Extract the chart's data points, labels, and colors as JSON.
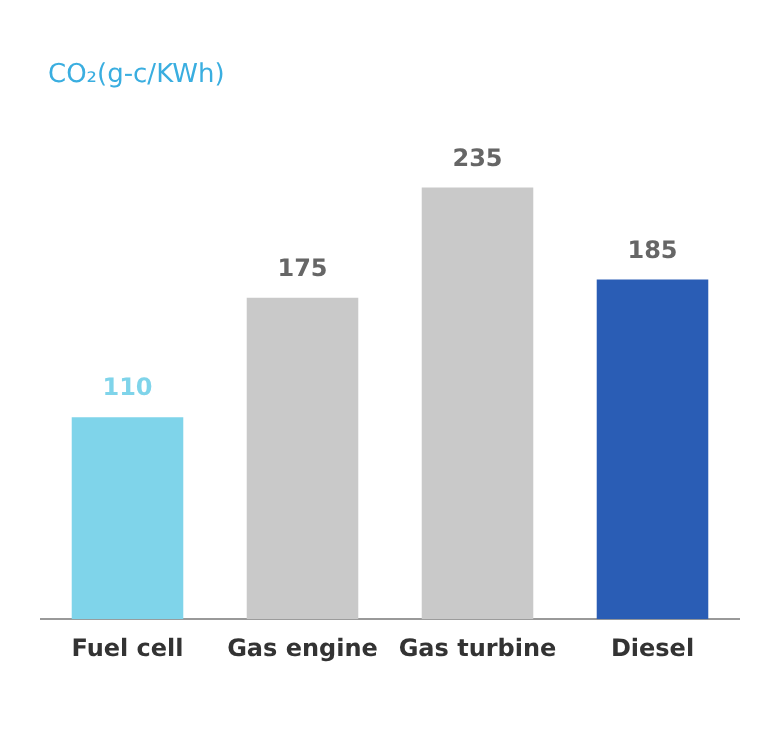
{
  "chart_data": {
    "type": "bar",
    "title": "CO₂(g-c/KWh)",
    "categories": [
      "Fuel cell",
      "Gas engine",
      "Gas turbine",
      "Diesel"
    ],
    "values": [
      110,
      175,
      235,
      185
    ],
    "colors": [
      "#7fd4ea",
      "#c9c9c9",
      "#c9c9c9",
      "#2a5db5"
    ],
    "data_labels": true,
    "tick_labels": "x",
    "legend": false
  }
}
